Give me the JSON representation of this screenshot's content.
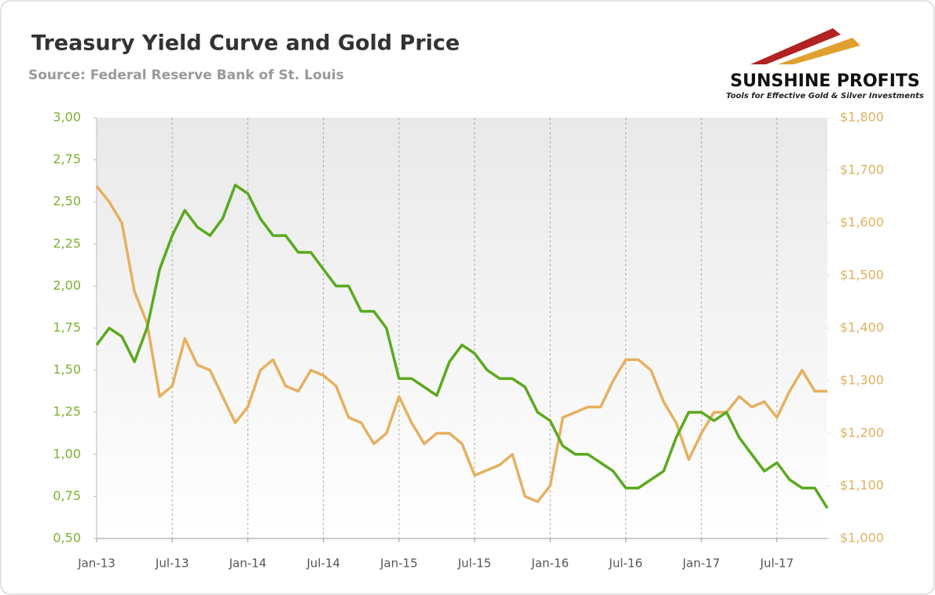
{
  "chart_data": {
    "type": "line",
    "title": "Treasury Yield Curve and Gold Price",
    "subtitle": "Source: Federal Reserve Bank of St. Louis",
    "x": [
      "2013-01",
      "2013-02",
      "2013-03",
      "2013-04",
      "2013-05",
      "2013-06",
      "2013-07",
      "2013-08",
      "2013-09",
      "2013-10",
      "2013-11",
      "2013-12",
      "2014-01",
      "2014-02",
      "2014-03",
      "2014-04",
      "2014-05",
      "2014-06",
      "2014-07",
      "2014-08",
      "2014-09",
      "2014-10",
      "2014-11",
      "2014-12",
      "2015-01",
      "2015-02",
      "2015-03",
      "2015-04",
      "2015-05",
      "2015-06",
      "2015-07",
      "2015-08",
      "2015-09",
      "2015-10",
      "2015-11",
      "2015-12",
      "2016-01",
      "2016-02",
      "2016-03",
      "2016-04",
      "2016-05",
      "2016-06",
      "2016-07",
      "2016-08",
      "2016-09",
      "2016-10",
      "2016-11",
      "2016-12",
      "2017-01",
      "2017-02",
      "2017-03",
      "2017-04",
      "2017-05",
      "2017-06",
      "2017-07",
      "2017-08",
      "2017-09",
      "2017-10",
      "2017-11"
    ],
    "series": [
      {
        "color": "#5aaa1e",
        "axis": "y",
        "values": [
          1.65,
          1.75,
          1.7,
          1.55,
          1.75,
          2.1,
          2.3,
          2.45,
          2.35,
          2.3,
          2.4,
          2.6,
          2.55,
          2.4,
          2.3,
          2.3,
          2.2,
          2.2,
          2.1,
          2.0,
          2.0,
          1.85,
          1.85,
          1.75,
          1.45,
          1.45,
          1.4,
          1.35,
          1.55,
          1.65,
          1.6,
          1.5,
          1.45,
          1.45,
          1.4,
          1.25,
          1.2,
          1.05,
          1.0,
          1.0,
          0.95,
          0.9,
          0.8,
          0.8,
          0.85,
          0.9,
          1.1,
          1.25,
          1.25,
          1.2,
          1.25,
          1.1,
          1.0,
          0.9,
          0.95,
          0.85,
          0.8,
          0.8,
          0.68
        ]
      },
      {
        "color": "#e6b060",
        "axis": "y2",
        "values": [
          1670,
          1640,
          1600,
          1470,
          1410,
          1270,
          1290,
          1380,
          1330,
          1320,
          1270,
          1220,
          1250,
          1320,
          1340,
          1290,
          1280,
          1320,
          1310,
          1290,
          1230,
          1220,
          1180,
          1200,
          1270,
          1220,
          1180,
          1200,
          1200,
          1180,
          1120,
          1130,
          1140,
          1160,
          1080,
          1070,
          1100,
          1230,
          1240,
          1250,
          1250,
          1300,
          1340,
          1340,
          1320,
          1260,
          1220,
          1150,
          1200,
          1240,
          1240,
          1270,
          1250,
          1260,
          1230,
          1280,
          1320,
          1280,
          1280
        ]
      }
    ],
    "xlim": [
      "2013-01",
      "2017-11"
    ],
    "xticks": [
      {
        "value": "2013-01",
        "label": "Jan-13"
      },
      {
        "value": "2013-07",
        "label": "Jul-13"
      },
      {
        "value": "2014-01",
        "label": "Jan-14"
      },
      {
        "value": "2014-07",
        "label": "Jul-14"
      },
      {
        "value": "2015-01",
        "label": "Jan-15"
      },
      {
        "value": "2015-07",
        "label": "Jul-15"
      },
      {
        "value": "2016-01",
        "label": "Jan-16"
      },
      {
        "value": "2016-07",
        "label": "Jul-16"
      },
      {
        "value": "2017-01",
        "label": "Jan-17"
      },
      {
        "value": "2017-07",
        "label": "Jul-17"
      }
    ],
    "ylim": [
      0.5,
      3
    ],
    "yticks": [
      {
        "value": 0.5,
        "label": "0,50"
      },
      {
        "value": 0.75,
        "label": "0,75"
      },
      {
        "value": 1,
        "label": "1,00"
      },
      {
        "value": 1.25,
        "label": "1,25"
      },
      {
        "value": 1.5,
        "label": "1,50"
      },
      {
        "value": 1.75,
        "label": "1,75"
      },
      {
        "value": 2,
        "label": "2,00"
      },
      {
        "value": 2.25,
        "label": "2,25"
      },
      {
        "value": 2.5,
        "label": "2,50"
      },
      {
        "value": 2.75,
        "label": "2,75"
      },
      {
        "value": 3,
        "label": "3,00"
      }
    ],
    "y2lim": [
      1000,
      1800
    ],
    "y2ticks": [
      {
        "value": 1000,
        "label": "$1,000"
      },
      {
        "value": 1100,
        "label": "$1,100"
      },
      {
        "value": 1200,
        "label": "$1,200"
      },
      {
        "value": 1300,
        "label": "$1,300"
      },
      {
        "value": 1400,
        "label": "$1,400"
      },
      {
        "value": 1500,
        "label": "$1,500"
      },
      {
        "value": 1600,
        "label": "$1,600"
      },
      {
        "value": 1700,
        "label": "$1,700"
      },
      {
        "value": 1800,
        "label": "$1,800"
      }
    ],
    "ytick_color": "#7ab32e",
    "y2tick_color": "#e0b060",
    "grid": true
  },
  "logo": {
    "name": "SUNSHINE PROFITS",
    "tagline": "Tools for Effective Gold & Silver Investments"
  }
}
